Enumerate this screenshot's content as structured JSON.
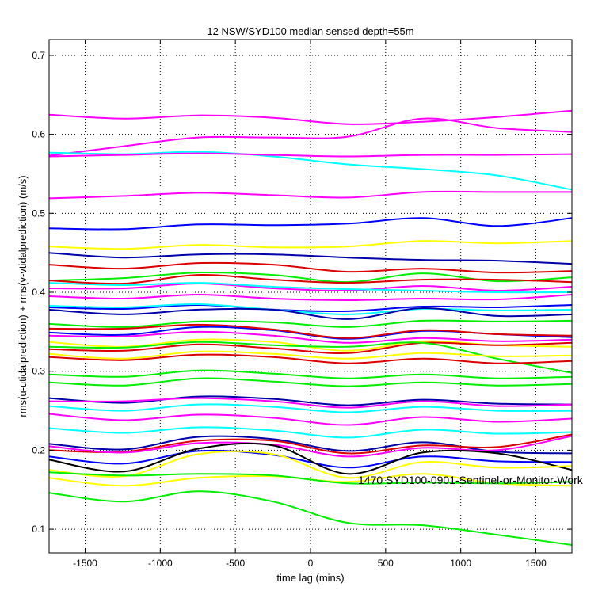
{
  "chart_data": {
    "type": "line",
    "title": "12 NSW/SYD100 median sensed depth=55m",
    "xlabel": "time lag (mins)",
    "ylabel": "rms(u-utidalprediction) + rms(v-vtidalprediction) (m/s)",
    "xlim": [
      -1740,
      1740
    ],
    "ylim": [
      0.07,
      0.72
    ],
    "xticks": [
      -1500,
      -1000,
      -500,
      0,
      500,
      1000,
      1500
    ],
    "yticks": [
      0.1,
      0.2,
      0.3,
      0.4,
      0.5,
      0.6,
      0.7
    ],
    "grid": true,
    "annotation": {
      "text": "1470 SYD100-0901-Sentinel-or-Monitor-Work",
      "x": 320,
      "y": 0.16
    },
    "series": [
      {
        "color": "#ff00ff",
        "values": [
          0.625,
          0.62,
          0.624,
          0.621,
          0.613,
          0.616,
          0.622,
          0.63
        ]
      },
      {
        "color": "#ff00ff",
        "values": [
          0.573,
          0.585,
          0.596,
          0.596,
          0.597,
          0.62,
          0.608,
          0.603
        ]
      },
      {
        "color": "#00ffff",
        "values": [
          0.577,
          0.575,
          0.578,
          0.572,
          0.562,
          0.556,
          0.548,
          0.53
        ]
      },
      {
        "color": "#ff00ff",
        "values": [
          0.572,
          0.574,
          0.576,
          0.574,
          0.572,
          0.574,
          0.574,
          0.575
        ]
      },
      {
        "color": "#ff00ff",
        "values": [
          0.519,
          0.522,
          0.526,
          0.523,
          0.52,
          0.527,
          0.527,
          0.527
        ]
      },
      {
        "color": "#0000ff",
        "values": [
          0.481,
          0.48,
          0.486,
          0.485,
          0.487,
          0.494,
          0.484,
          0.494
        ]
      },
      {
        "color": "#ffff00",
        "values": [
          0.458,
          0.455,
          0.46,
          0.457,
          0.458,
          0.465,
          0.462,
          0.465
        ]
      },
      {
        "color": "#0000aa",
        "values": [
          0.45,
          0.444,
          0.448,
          0.448,
          0.444,
          0.441,
          0.44,
          0.436
        ]
      },
      {
        "color": "#dd0000",
        "values": [
          0.435,
          0.43,
          0.437,
          0.435,
          0.426,
          0.43,
          0.425,
          0.427
        ]
      },
      {
        "color": "#00ee00",
        "values": [
          0.415,
          0.418,
          0.425,
          0.422,
          0.413,
          0.424,
          0.414,
          0.419
        ]
      },
      {
        "color": "#dd0000",
        "values": [
          0.415,
          0.411,
          0.422,
          0.416,
          0.412,
          0.416,
          0.416,
          0.413
        ]
      },
      {
        "color": "#ff00ff",
        "values": [
          0.405,
          0.405,
          0.411,
          0.405,
          0.402,
          0.408,
          0.402,
          0.407
        ]
      },
      {
        "color": "#00ffff",
        "values": [
          0.412,
          0.409,
          0.412,
          0.407,
          0.404,
          0.402,
          0.4,
          0.4
        ]
      },
      {
        "color": "#0000ff",
        "values": [
          0.381,
          0.379,
          0.384,
          0.378,
          0.376,
          0.382,
          0.381,
          0.384
        ]
      },
      {
        "color": "#00ffff",
        "values": [
          0.383,
          0.381,
          0.385,
          0.378,
          0.372,
          0.379,
          0.377,
          0.378
        ]
      },
      {
        "color": "#ff00ff",
        "values": [
          0.395,
          0.392,
          0.397,
          0.392,
          0.39,
          0.392,
          0.391,
          0.397
        ]
      },
      {
        "color": "#0000aa",
        "values": [
          0.378,
          0.372,
          0.378,
          0.378,
          0.366,
          0.38,
          0.37,
          0.372
        ]
      },
      {
        "color": "#00ee00",
        "values": [
          0.36,
          0.356,
          0.363,
          0.362,
          0.356,
          0.364,
          0.363,
          0.364
        ]
      },
      {
        "color": "#0000ff",
        "values": [
          0.349,
          0.346,
          0.356,
          0.352,
          0.341,
          0.351,
          0.347,
          0.343
        ]
      },
      {
        "color": "#dd0000",
        "values": [
          0.354,
          0.354,
          0.359,
          0.353,
          0.342,
          0.352,
          0.347,
          0.345
        ]
      },
      {
        "color": "#ff00ff",
        "values": [
          0.345,
          0.344,
          0.35,
          0.345,
          0.336,
          0.342,
          0.338,
          0.34
        ]
      },
      {
        "color": "#ffff00",
        "values": [
          0.337,
          0.331,
          0.34,
          0.337,
          0.326,
          0.338,
          0.333,
          0.331
        ]
      },
      {
        "color": "#dd0000",
        "values": [
          0.328,
          0.326,
          0.334,
          0.329,
          0.323,
          0.336,
          0.333,
          0.336
        ]
      },
      {
        "color": "#00ee00",
        "values": [
          0.331,
          0.33,
          0.337,
          0.333,
          0.331,
          0.336,
          0.316,
          0.298
        ]
      },
      {
        "color": "#ffff00",
        "values": [
          0.322,
          0.316,
          0.325,
          0.322,
          0.316,
          0.323,
          0.319,
          0.32
        ]
      },
      {
        "color": "#dd0000",
        "values": [
          0.318,
          0.314,
          0.321,
          0.318,
          0.31,
          0.316,
          0.31,
          0.313
        ]
      },
      {
        "color": "#00ee00",
        "values": [
          0.296,
          0.293,
          0.301,
          0.297,
          0.291,
          0.296,
          0.291,
          0.293
        ]
      },
      {
        "color": "#00ee00",
        "values": [
          0.286,
          0.282,
          0.291,
          0.287,
          0.281,
          0.286,
          0.282,
          0.284
        ]
      },
      {
        "color": "#0000aa",
        "values": [
          0.266,
          0.26,
          0.268,
          0.265,
          0.257,
          0.264,
          0.259,
          0.258
        ]
      },
      {
        "color": "#ff00ff",
        "values": [
          0.262,
          0.262,
          0.266,
          0.262,
          0.254,
          0.262,
          0.256,
          0.258
        ]
      },
      {
        "color": "#00ffff",
        "values": [
          0.256,
          0.25,
          0.258,
          0.255,
          0.248,
          0.255,
          0.25,
          0.25
        ]
      },
      {
        "color": "#ff00ff",
        "values": [
          0.246,
          0.238,
          0.245,
          0.241,
          0.232,
          0.242,
          0.236,
          0.24
        ]
      },
      {
        "color": "#00ffff",
        "values": [
          0.228,
          0.222,
          0.229,
          0.225,
          0.216,
          0.226,
          0.221,
          0.223
        ]
      },
      {
        "color": "#0000aa",
        "values": [
          0.208,
          0.201,
          0.217,
          0.214,
          0.199,
          0.21,
          0.198,
          0.196
        ]
      },
      {
        "color": "#dd0000",
        "values": [
          0.2,
          0.198,
          0.212,
          0.212,
          0.196,
          0.206,
          0.204,
          0.22
        ]
      },
      {
        "color": "#ff00ff",
        "values": [
          0.205,
          0.197,
          0.209,
          0.207,
          0.192,
          0.203,
          0.2,
          0.218
        ]
      },
      {
        "color": "#0000ff",
        "values": [
          0.192,
          0.183,
          0.199,
          0.194,
          0.178,
          0.192,
          0.186,
          0.185
        ]
      },
      {
        "color": "#000000",
        "values": [
          0.188,
          0.173,
          0.202,
          0.206,
          0.17,
          0.197,
          0.196,
          0.175
        ]
      },
      {
        "color": "#ffff00",
        "values": [
          0.175,
          0.167,
          0.195,
          0.195,
          0.165,
          0.185,
          0.178,
          0.18
        ]
      },
      {
        "color": "#ffff00",
        "values": [
          0.165,
          0.155,
          0.165,
          0.167,
          0.16,
          0.17,
          0.158,
          0.155
        ]
      },
      {
        "color": "#00ee00",
        "values": [
          0.172,
          0.168,
          0.17,
          0.168,
          0.158,
          0.159,
          0.158,
          0.16
        ]
      },
      {
        "color": "#00ee00",
        "values": [
          0.146,
          0.135,
          0.148,
          0.135,
          0.108,
          0.105,
          0.093,
          0.08
        ]
      }
    ]
  }
}
